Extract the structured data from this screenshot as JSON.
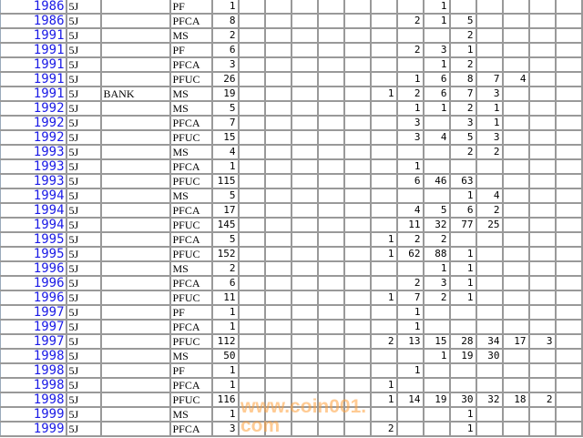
{
  "watermark": "www.coin001.com",
  "colors": {
    "year_link": "#1a1ae6",
    "grid": "#999999",
    "watermark": "#ffa03c"
  },
  "rows": [
    {
      "year": "1986",
      "grade": "5J",
      "note": "",
      "type": "PF",
      "count": "1",
      "cols": [
        "",
        "",
        "",
        "",
        "",
        "",
        "",
        "1",
        "",
        "",
        "",
        "",
        ""
      ]
    },
    {
      "year": "1986",
      "grade": "5J",
      "note": "",
      "type": "PFCA",
      "count": "8",
      "cols": [
        "",
        "",
        "",
        "",
        "",
        "",
        "2",
        "1",
        "5",
        "",
        "",
        "",
        ""
      ]
    },
    {
      "year": "1991",
      "grade": "5J",
      "note": "",
      "type": "MS",
      "count": "2",
      "cols": [
        "",
        "",
        "",
        "",
        "",
        "",
        "",
        "",
        "2",
        "",
        "",
        "",
        ""
      ]
    },
    {
      "year": "1991",
      "grade": "5J",
      "note": "",
      "type": "PF",
      "count": "6",
      "cols": [
        "",
        "",
        "",
        "",
        "",
        "",
        "2",
        "3",
        "1",
        "",
        "",
        "",
        ""
      ]
    },
    {
      "year": "1991",
      "grade": "5J",
      "note": "",
      "type": "PFCA",
      "count": "3",
      "cols": [
        "",
        "",
        "",
        "",
        "",
        "",
        "",
        "1",
        "2",
        "",
        "",
        "",
        ""
      ]
    },
    {
      "year": "1991",
      "grade": "5J",
      "note": "",
      "type": "PFUC",
      "count": "26",
      "cols": [
        "",
        "",
        "",
        "",
        "",
        "",
        "1",
        "6",
        "8",
        "7",
        "4",
        "",
        ""
      ]
    },
    {
      "year": "1991",
      "grade": "5J",
      "note": "BANK",
      "type": "MS",
      "count": "19",
      "cols": [
        "",
        "",
        "",
        "",
        "",
        "1",
        "2",
        "6",
        "7",
        "3",
        "",
        "",
        ""
      ]
    },
    {
      "year": "1992",
      "grade": "5J",
      "note": "",
      "type": "MS",
      "count": "5",
      "cols": [
        "",
        "",
        "",
        "",
        "",
        "",
        "1",
        "1",
        "2",
        "1",
        "",
        "",
        ""
      ]
    },
    {
      "year": "1992",
      "grade": "5J",
      "note": "",
      "type": "PFCA",
      "count": "7",
      "cols": [
        "",
        "",
        "",
        "",
        "",
        "",
        "3",
        "",
        "3",
        "1",
        "",
        "",
        ""
      ]
    },
    {
      "year": "1992",
      "grade": "5J",
      "note": "",
      "type": "PFUC",
      "count": "15",
      "cols": [
        "",
        "",
        "",
        "",
        "",
        "",
        "3",
        "4",
        "5",
        "3",
        "",
        "",
        ""
      ]
    },
    {
      "year": "1993",
      "grade": "5J",
      "note": "",
      "type": "MS",
      "count": "4",
      "cols": [
        "",
        "",
        "",
        "",
        "",
        "",
        "",
        "",
        "2",
        "2",
        "",
        "",
        ""
      ]
    },
    {
      "year": "1993",
      "grade": "5J",
      "note": "",
      "type": "PFCA",
      "count": "1",
      "cols": [
        "",
        "",
        "",
        "",
        "",
        "",
        "1",
        "",
        "",
        "",
        "",
        "",
        ""
      ]
    },
    {
      "year": "1993",
      "grade": "5J",
      "note": "",
      "type": "PFUC",
      "count": "115",
      "cols": [
        "",
        "",
        "",
        "",
        "",
        "",
        "6",
        "46",
        "63",
        "",
        "",
        "",
        ""
      ]
    },
    {
      "year": "1994",
      "grade": "5J",
      "note": "",
      "type": "MS",
      "count": "5",
      "cols": [
        "",
        "",
        "",
        "",
        "",
        "",
        "",
        "",
        "1",
        "4",
        "",
        "",
        ""
      ]
    },
    {
      "year": "1994",
      "grade": "5J",
      "note": "",
      "type": "PFCA",
      "count": "17",
      "cols": [
        "",
        "",
        "",
        "",
        "",
        "",
        "4",
        "5",
        "6",
        "2",
        "",
        "",
        ""
      ]
    },
    {
      "year": "1994",
      "grade": "5J",
      "note": "",
      "type": "PFUC",
      "count": "145",
      "cols": [
        "",
        "",
        "",
        "",
        "",
        "",
        "11",
        "32",
        "77",
        "25",
        "",
        "",
        ""
      ]
    },
    {
      "year": "1995",
      "grade": "5J",
      "note": "",
      "type": "PFCA",
      "count": "5",
      "cols": [
        "",
        "",
        "",
        "",
        "",
        "1",
        "2",
        "2",
        "",
        "",
        "",
        "",
        ""
      ]
    },
    {
      "year": "1995",
      "grade": "5J",
      "note": "",
      "type": "PFUC",
      "count": "152",
      "cols": [
        "",
        "",
        "",
        "",
        "",
        "1",
        "62",
        "88",
        "1",
        "",
        "",
        "",
        ""
      ]
    },
    {
      "year": "1996",
      "grade": "5J",
      "note": "",
      "type": "MS",
      "count": "2",
      "cols": [
        "",
        "",
        "",
        "",
        "",
        "",
        "",
        "1",
        "1",
        "",
        "",
        "",
        ""
      ]
    },
    {
      "year": "1996",
      "grade": "5J",
      "note": "",
      "type": "PFCA",
      "count": "6",
      "cols": [
        "",
        "",
        "",
        "",
        "",
        "",
        "2",
        "3",
        "1",
        "",
        "",
        "",
        ""
      ]
    },
    {
      "year": "1996",
      "grade": "5J",
      "note": "",
      "type": "PFUC",
      "count": "11",
      "cols": [
        "",
        "",
        "",
        "",
        "",
        "1",
        "7",
        "2",
        "1",
        "",
        "",
        "",
        ""
      ]
    },
    {
      "year": "1997",
      "grade": "5J",
      "note": "",
      "type": "PF",
      "count": "1",
      "cols": [
        "",
        "",
        "",
        "",
        "",
        "",
        "1",
        "",
        "",
        "",
        "",
        "",
        ""
      ]
    },
    {
      "year": "1997",
      "grade": "5J",
      "note": "",
      "type": "PFCA",
      "count": "1",
      "cols": [
        "",
        "",
        "",
        "",
        "",
        "",
        "1",
        "",
        "",
        "",
        "",
        "",
        ""
      ]
    },
    {
      "year": "1997",
      "grade": "5J",
      "note": "",
      "type": "PFUC",
      "count": "112",
      "cols": [
        "",
        "",
        "",
        "",
        "",
        "2",
        "13",
        "15",
        "28",
        "34",
        "17",
        "3",
        ""
      ]
    },
    {
      "year": "1998",
      "grade": "5J",
      "note": "",
      "type": "MS",
      "count": "50",
      "cols": [
        "",
        "",
        "",
        "",
        "",
        "",
        "",
        "1",
        "19",
        "30",
        "",
        "",
        ""
      ]
    },
    {
      "year": "1998",
      "grade": "5J",
      "note": "",
      "type": "PF",
      "count": "1",
      "cols": [
        "",
        "",
        "",
        "",
        "",
        "",
        "1",
        "",
        "",
        "",
        "",
        "",
        ""
      ]
    },
    {
      "year": "1998",
      "grade": "5J",
      "note": "",
      "type": "PFCA",
      "count": "1",
      "cols": [
        "",
        "",
        "",
        "",
        "",
        "1",
        "",
        "",
        "",
        "",
        "",
        "",
        ""
      ]
    },
    {
      "year": "1998",
      "grade": "5J",
      "note": "",
      "type": "PFUC",
      "count": "116",
      "cols": [
        "",
        "",
        "",
        "",
        "",
        "1",
        "14",
        "19",
        "30",
        "32",
        "18",
        "2",
        ""
      ]
    },
    {
      "year": "1999",
      "grade": "5J",
      "note": "",
      "type": "MS",
      "count": "1",
      "cols": [
        "",
        "",
        "",
        "",
        "",
        "",
        "",
        "",
        "1",
        "",
        "",
        "",
        ""
      ]
    },
    {
      "year": "1999",
      "grade": "5J",
      "note": "",
      "type": "PFCA",
      "count": "3",
      "cols": [
        "",
        "",
        "",
        "",
        "",
        "2",
        "",
        "",
        "1",
        "",
        "",
        "",
        ""
      ]
    }
  ]
}
